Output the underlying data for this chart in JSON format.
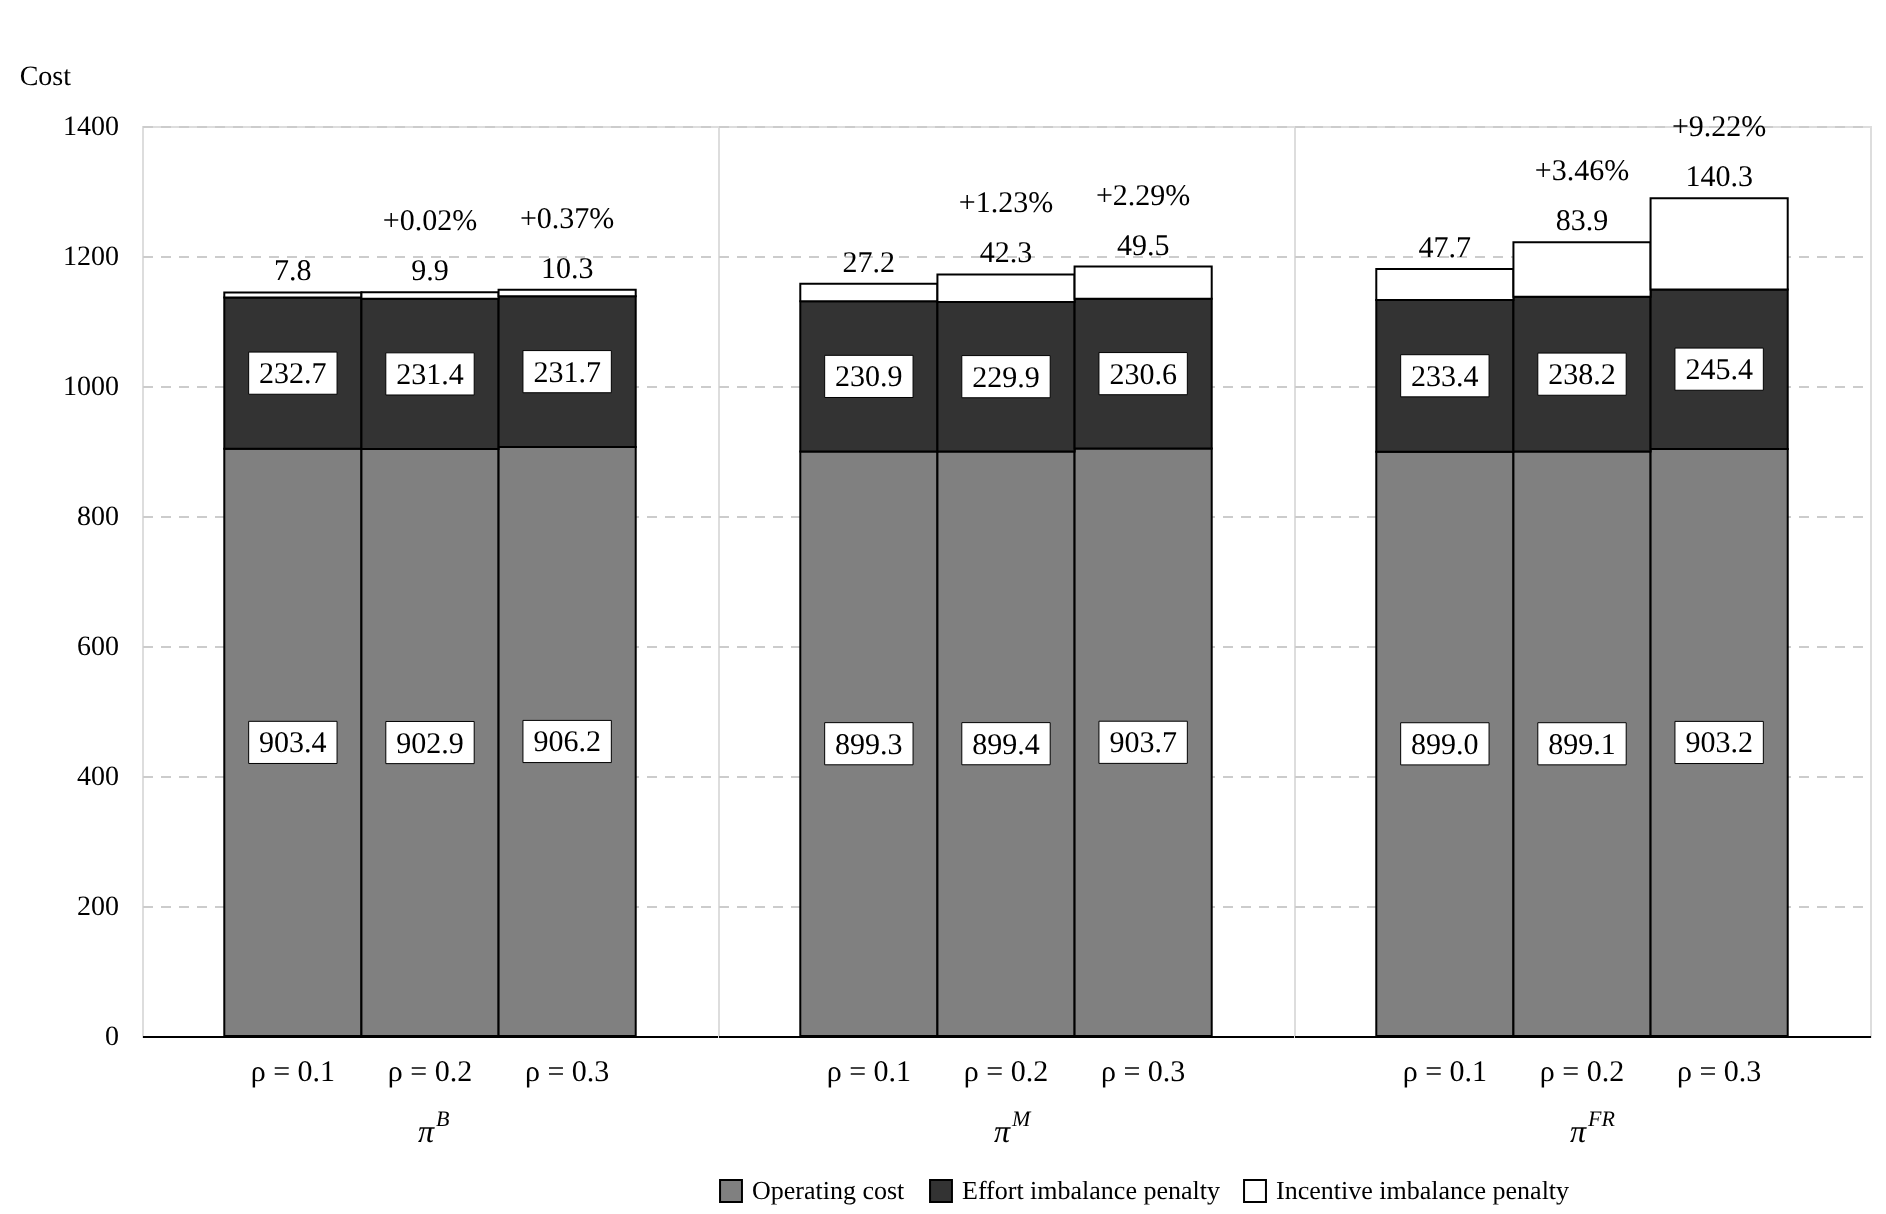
{
  "chart_data": [
    {
      "type": "bar",
      "stacked": true,
      "xlabel": "π$^{B}$",
      "ylabel": "Cost",
      "categories": [
        "ρ = 0.1",
        "ρ = 0.2",
        "ρ = 0.3"
      ],
      "ylim": [
        0,
        1400
      ],
      "yticks": [
        0,
        200,
        400,
        600,
        800,
        1000,
        1200,
        1400
      ],
      "grid": "y",
      "legend": false,
      "series": [
        {
          "color": "#808080",
          "values": [
            903.4,
            902.9,
            906.2
          ],
          "value_labels": [
            "903.4",
            "902.9",
            "906.2"
          ]
        },
        {
          "color": "#333333",
          "values": [
            232.7,
            231.4,
            231.7
          ],
          "value_labels": [
            "232.7",
            "231.4",
            "231.7"
          ]
        },
        {
          "color": "#ffffff",
          "values": [
            7.8,
            9.9,
            10.3
          ],
          "value_labels": [
            "7.8",
            "9.9",
            "10.3"
          ]
        }
      ],
      "annotations": [
        {
          "text": "+0.02%",
          "x": "ρ = 0.2",
          "y": 1144.2
        },
        {
          "text": "+0.37%",
          "x": "ρ = 0.3",
          "y": 1148.2
        }
      ]
    },
    {
      "type": "bar",
      "stacked": true,
      "xlabel": "π$^{M}$",
      "categories": [
        "ρ = 0.1",
        "ρ = 0.2",
        "ρ = 0.3"
      ],
      "ylim": [
        0,
        1400
      ],
      "yticks": [
        0,
        200,
        400,
        600,
        800,
        1000,
        1200,
        1400
      ],
      "grid": "y",
      "legend": "bottom",
      "tick_labels": "x",
      "series": [
        {
          "name": "Operating cost",
          "color": "#808080",
          "values": [
            899.3,
            899.4,
            903.7
          ],
          "value_labels": [
            "899.3",
            "899.4",
            "903.7"
          ]
        },
        {
          "name": "Effort imbalance penalty",
          "color": "#333333",
          "values": [
            230.9,
            229.9,
            230.6
          ],
          "value_labels": [
            "230.9",
            "229.9",
            "230.6"
          ]
        },
        {
          "name": "Incentive imbalance penalty",
          "color": "#ffffff",
          "values": [
            27.2,
            42.3,
            49.5
          ],
          "value_labels": [
            "27.2",
            "42.3",
            "49.5"
          ]
        }
      ],
      "annotations": [
        {
          "text": "+1.23%",
          "x": "ρ = 0.2",
          "y": 1171.6
        },
        {
          "text": "+2.29%",
          "x": "ρ = 0.3",
          "y": 1183.8
        }
      ]
    },
    {
      "type": "bar",
      "stacked": true,
      "xlabel": "π$^{FR}$",
      "categories": [
        "ρ = 0.1",
        "ρ = 0.2",
        "ρ = 0.3"
      ],
      "ylim": [
        0,
        1400
      ],
      "yticks": [
        0,
        200,
        400,
        600,
        800,
        1000,
        1200,
        1400
      ],
      "grid": "y",
      "legend": false,
      "tick_labels": "x",
      "series": [
        {
          "color": "#808080",
          "values": [
            899.0,
            899.1,
            903.2
          ],
          "value_labels": [
            "899.0",
            "899.1",
            "903.2"
          ]
        },
        {
          "color": "#333333",
          "values": [
            233.4,
            238.2,
            245.4
          ],
          "value_labels": [
            "233.4",
            "238.2",
            "245.4"
          ]
        },
        {
          "color": "#ffffff",
          "values": [
            47.7,
            83.9,
            140.3
          ],
          "value_labels": [
            "47.7",
            "83.9",
            "140.3"
          ]
        }
      ],
      "annotations": [
        {
          "text": "+3.46%",
          "x": "ρ = 0.2",
          "y": 1221.2
        },
        {
          "text": "+9.22%",
          "x": "ρ = 0.3",
          "y": 1288.9
        }
      ]
    }
  ]
}
